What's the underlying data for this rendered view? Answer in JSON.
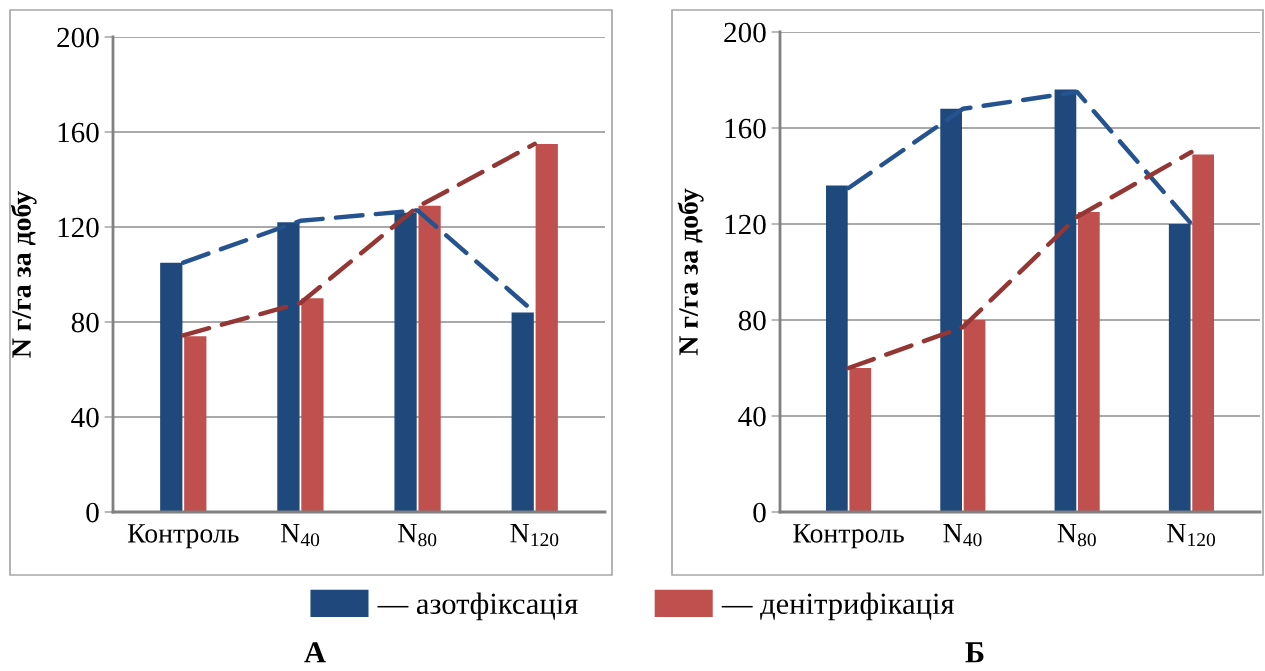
{
  "chart_data": [
    {
      "type": "bar",
      "title": "А",
      "ylabel": "N г/га за добу",
      "categories": [
        "Контроль",
        "N$_{40}$",
        "N$_{80}$",
        "N$_{120}$"
      ],
      "ylim": [
        0,
        200
      ],
      "yticks": [
        0,
        40,
        80,
        120,
        160,
        200
      ],
      "grid": "y",
      "legend": "bottom",
      "series": [
        {
          "name": "— азотфіксація",
          "color": "#1f497d",
          "values": [
            105,
            122,
            126,
            84
          ]
        },
        {
          "name": "— денітрифікація",
          "color": "#c0504d",
          "values": [
            74,
            90,
            129,
            155
          ]
        },
        {
          "type": "line",
          "color": "#24538f",
          "line_style": "dashed",
          "values": [
            105,
            122.6,
            127,
            84
          ]
        },
        {
          "type": "line",
          "color": "#943634",
          "line_style": "dashed",
          "values": [
            74.4,
            88,
            128.5,
            155
          ]
        }
      ]
    },
    {
      "type": "bar",
      "title": "Б",
      "ylabel": "N г/га за добу",
      "categories": [
        "Контроль",
        "N$_{40}$",
        "N$_{80}$",
        "N$_{120}$"
      ],
      "ylim": [
        0,
        200
      ],
      "yticks": [
        0,
        40,
        80,
        120,
        160,
        200
      ],
      "grid": "y",
      "legend": "bottom",
      "series": [
        {
          "name": "— азотфіксація",
          "color": "#1f497d",
          "values": [
            136,
            168,
            176,
            120
          ]
        },
        {
          "name": "— денітрифікація",
          "color": "#c0504d",
          "values": [
            60,
            80,
            125,
            149
          ]
        },
        {
          "type": "line",
          "color": "#24538f",
          "line_style": "dashed",
          "values": [
            135,
            168,
            175,
            120
          ]
        },
        {
          "type": "line",
          "color": "#943634",
          "line_style": "dashed",
          "values": [
            60,
            77,
            123,
            150
          ]
        }
      ]
    }
  ]
}
